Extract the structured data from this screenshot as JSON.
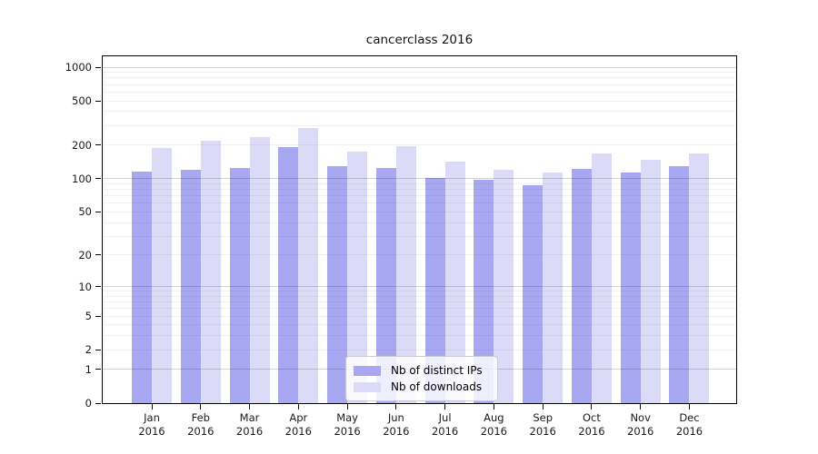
{
  "chart_data": {
    "type": "bar",
    "title": "cancerclass 2016",
    "categories": [
      "Jan",
      "Feb",
      "Mar",
      "Apr",
      "May",
      "Jun",
      "Jul",
      "Aug",
      "Sep",
      "Oct",
      "Nov",
      "Dec"
    ],
    "year": "2016",
    "series": [
      {
        "name": "Nb of distinct IPs",
        "color": "#a8a8f2",
        "values": [
          115,
          121,
          126,
          192,
          129,
          125,
          101,
          98,
          88,
          123,
          114,
          129
        ]
      },
      {
        "name": "Nb of downloads",
        "color": "#dbdbf8",
        "values": [
          189,
          220,
          235,
          283,
          174,
          195,
          142,
          120,
          113,
          170,
          149,
          169
        ]
      }
    ],
    "yscale": "log10(1+x)",
    "y_ticks": [
      0,
      1,
      2,
      5,
      10,
      20,
      50,
      100,
      200,
      500,
      1000
    ],
    "ylim": [
      0,
      1250
    ],
    "grid": true,
    "grid_minor_color": "#0000000E",
    "grid_major_color": "#0000002B",
    "axis_color": "#000000",
    "legend_position": "lower-center"
  }
}
